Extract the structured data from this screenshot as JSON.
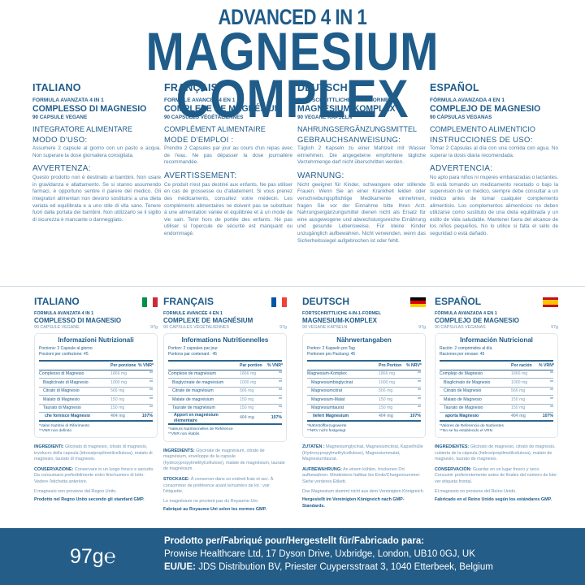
{
  "header": {
    "subtitle": "ADVANCED 4 IN 1",
    "title": "MAGNESIUM COMPLEX"
  },
  "colors": {
    "brand_blue": "#1f5c8a",
    "footer_bg": "#245d87",
    "body_text": "#4d7fa6"
  },
  "columns": [
    {
      "lang": "ITALIANO",
      "formula": "FORMULA AVANZATA 4 IN 1",
      "product": "COMPLESSO DI MAGNESIO",
      "capsules": "90 CAPSULE VEGANE",
      "category": "INTEGRATORE ALIMENTARE",
      "usage_title": "MODO D'USO:",
      "usage_text": "Assumere 2 capsule al giorno con un pasto e acqua. Non superare la dose giornaliera consigliata.",
      "warning_title": "AVVERTENZA:",
      "warning_text": "Questo prodotto non è destinato ai bambini. Non usare in gravidanza e allattamento. Se si stanno assumendo farmaci, è opportuno sentire il parere del medico. Gli integratori alimentari non devono sostituirsi a una dieta variata ed equilibrata e a uno stile di vita sano. Tenere fuori dalla portata dei bambini. Non utilizzarlo se il sigillo di sicurezza è mancante o danneggiato."
    },
    {
      "lang": "FRANÇAIS",
      "formula": "FORMULE AVANCÉE 4 EN 1",
      "product": "COMPLEXE DE MAGNÉSIUM",
      "capsules": "90 CAPSULES VÉGÉTALIENNES",
      "category": "COMPLÉMENT ALIMENTAIRE",
      "usage_title": "MODE D'EMPLOI :",
      "usage_text": "Prendre 2 Capsules par jour au cours d'un repas avec de l'eau. Ne pas dépasser la dose journalière recommandée.",
      "warning_title": "AVERTISSEMENT:",
      "warning_text": "Ce produit n'est pas destiné aux enfants. Ne pas utiliser en cas de grossesse ou d'allaitement. Si vous prenez des médicaments, consultez votre médecin. Les compléments alimentaires ne doivent pas se substituer à une alimentation variée et équilibrée et à un mode de vie sain. Tenir hors de portée des enfants. Ne pas utiliser si l'opercule de sécurité est manquant ou endommagé."
    },
    {
      "lang": "DEUTSCH",
      "formula": "FORTSCHRITTLICHE 4-IN-1-FORMEL",
      "product": "MAGNESIUM-KOMPLEX",
      "capsules": "90 VEGANE KAPSELN",
      "category": "NAHRUNGSERGÄNZUNGSMITTEL",
      "usage_title": "GEBRAUCHSANWEISUNG:",
      "usage_text": "Täglich 2 Kapseln zu einer Mahlzeit mit Wasser einnehmen. Die angegebene empfohlene tägliche Verzehrmenge darf nicht überschritten werden.",
      "warning_title": "WARNUNG:",
      "warning_text": "Nicht geeignet für Kinder, schwangere oder stillende Frauen. Wenn Sie an einer Krankheit leiden oder verschreibungspflichtige Medikamente einnehmen, fragen Sie vor der Einnahme bitte Ihren Arzt. Nahrungsergänzungsmittel dienen nicht als Ersatz für eine ausgewogene und abwechslungsreiche Ernährung und gesunde Lebensweise. Für kleine Kinder unzugänglich aufbewahren. Nicht verwenden, wenn das Sicherheitssiegel aufgebrochen ist oder fehlt."
    },
    {
      "lang": "ESPAÑOL",
      "formula": "FÓRMULA AVANZADA 4 EN 1",
      "product": "COMPLEJO DE MAGNESIO",
      "capsules": "90 CÁPSULAS VEGANAS",
      "category": "COMPLEMENTO ALIMENTICIO",
      "usage_title": "INSTRUCCIONES DE USO:",
      "usage_text": "Tomar 2 Cápsulas al día con una comida con agua. No superar la dosis diaria recomendada.",
      "warning_title": "ADVERTENCIA:",
      "warning_text": "No apto para niños ni mujeres embarazadas o lactantes. Si está tomando un medicamento recetado o bajo la supervisión de un médico, siempre debe consultar a un médico antes de tomar cualquier complemento alimenticio. Los complementos alimenticios no deben utilizarse como sustituto de una dieta equilibrada y un estilo de vida saludable. Mantener fuera del alcance de los niños pequeños. No lo utilice si falta el sello de seguridad o está dañado."
    }
  ],
  "panels": [
    {
      "lang": "ITALIANO",
      "flag": "italy-flag",
      "formula": "FORMULA AVANZATA 4 IN 1",
      "product": "COMPLESSO DI MAGNESIO",
      "capsules": "90 CAPSULE VEGANE",
      "weight": "97g",
      "table_title": "Informazioni Nutrizionali",
      "portion": [
        "Porzione: 2 Capsule al giorno",
        "Porzioni per confezione: 45"
      ],
      "headers": [
        "Per porzione",
        "% VNR*"
      ],
      "rows": [
        [
          "Complesso di Magnesio",
          "1866 mg",
          "**"
        ],
        [
          "Bisglicinato di Magnesio",
          "1000 mg",
          "**"
        ],
        [
          "Citrato di Magnesio",
          "566 mg",
          "**"
        ],
        [
          "Malato di Magnesio",
          "150 mg",
          "**"
        ],
        [
          "Taurato di Magnesio",
          "150 mg",
          "**"
        ],
        [
          "che fornisce Magnesio",
          "404 mg",
          "107%"
        ]
      ],
      "footnotes": [
        "*Valori Nutritivi di Riferimento",
        "**VNR non definito"
      ],
      "ingredients_label": "INGREDIENTI:",
      "ingredients": "Glicinato di magnesio, citrato di magnesio, involucro della capsula (idrossipropilmetilcellulosa), malato di magnesio, taurato di magnesio.",
      "storage_label": "CONSERVAZIONE:",
      "storage": "Conservare in un luogo fresco e asciutto. Da consumarsi preferibilmente entro fine/numero di lotto: Vedere l'etichetta anteriore.",
      "origin": "Il magnesio non proviene dal Regno Unito.",
      "made": "Prodotto nel Regno Unito secondo gli standard GMP."
    },
    {
      "lang": "FRANÇAIS",
      "flag": "france-flag",
      "formula": "FORMULE AVANCÉE 4 EN 1",
      "product": "COMPLEXE DE MAGNÉSIUM",
      "capsules": "90 CAPSULES VÉGÉTALIENNES",
      "weight": "97g",
      "table_title": "Informations Nutritionnelles",
      "portion": [
        "Portion: 2 capsules par jour",
        "Portions par contenant : 45"
      ],
      "headers": [
        "Par portion",
        "% VNR*"
      ],
      "rows": [
        [
          "Complexe de magnésium",
          "1866 mg",
          "**"
        ],
        [
          "Bisglycinate de magnésium",
          "1000 mg",
          "**"
        ],
        [
          "Citrate de magnésium",
          "566 mg",
          "**"
        ],
        [
          "Malate de magnésium",
          "150 mg",
          "**"
        ],
        [
          "Taurate de magnésium",
          "150 mg",
          "**"
        ],
        [
          "Apport en magnésium élémentaire",
          "404 mg",
          "107%"
        ]
      ],
      "footnotes": [
        "*Valeurs Nutritionnelles de Référence",
        "**VNR non établis"
      ],
      "ingredients_label": "INGRÉDIENTS:",
      "ingredients": "Glycinate de magnésium, citrate de magnésium, enveloppe de la capsule (hydroxypropylméthylcellulose), malate de magnésium, taurate de magnésium.",
      "storage_label": "STOCKAGE:",
      "storage": "À conserver dans un endroit frais et sec. À consommer de préférence avant le/numéro de lot : voir l'étiquette.",
      "origin": "Le magnésium ne provient pas du Royaume-Uni.",
      "made": "Fabriqué au Royaume-Uni selon les normes GMP."
    },
    {
      "lang": "DEUTSCH",
      "flag": "germany-flag",
      "formula": "FORTSCHRITTLICHE 4-IN-1-FORMEL",
      "product": "MAGNESIUM-KOMPLEX",
      "capsules": "90 VEGANE KAPSELN",
      "weight": "97g",
      "table_title": "Nährwertangaben",
      "portion": [
        "Portion: 2 Kapseln pro Tag",
        "Portionen pro Packung: 45"
      ],
      "headers": [
        "Pro Portion",
        "% NRV*"
      ],
      "rows": [
        [
          "Magnesium-Komplex",
          "1866 mg",
          "**"
        ],
        [
          "Magnesiumbisglycinat",
          "1000 mg",
          "**"
        ],
        [
          "Magnesiumcitrat",
          "566 mg",
          "**"
        ],
        [
          "Magnesium-Malat",
          "150 mg",
          "**"
        ],
        [
          "Magnesiumtaurat",
          "150 mg",
          "**"
        ],
        [
          "liefert Magnesium",
          "404 mg",
          "107%"
        ]
      ],
      "footnotes": [
        "*Nährstoffbezugswerte",
        "**NRV nicht festgelegt"
      ],
      "ingredients_label": "ZUTATEN :",
      "ingredients": "Magnesiumglycinat, Magnesiumcitrat, Kapselhülle (Hydroxypropylmethylcellulose), Magnesiummalat, Magnesiumtaurat.",
      "storage_label": "AUFBEWAHRUNG:",
      "storage": "An einem kühlen, trockenen Ort aufbewahren. Mindestens haltbar bis Ende/Chargennummer: Siehe vorderes Etikett.",
      "origin": "Das Magnesium stammt nicht aus dem Vereinigten Königreich.",
      "made": "Hergestellt im Vereinigten Königreich nach GMP-Standards."
    },
    {
      "lang": "ESPAÑOL",
      "flag": "spain-flag",
      "formula": "FÓRMULA AVANZADA 4 EN 1",
      "product": "COMPLEJO DE MAGNESIO",
      "capsules": "90 CÁPSULAS VEGANAS",
      "weight": "97g",
      "table_title": "Información Nutricional",
      "portion": [
        "Ración: 2 comprimidos al día",
        "Raciones por envase: 45"
      ],
      "headers": [
        "Por ración",
        "% VRN*"
      ],
      "rows": [
        [
          "Complejo de Magnesio",
          "1866 mg",
          "**"
        ],
        [
          "Bisglicinato de Magnesio",
          "1000 mg",
          "**"
        ],
        [
          "Citrato de Magnesio",
          "566 mg",
          "**"
        ],
        [
          "Malato de Magnesio",
          "150 mg",
          "**"
        ],
        [
          "Taurato de Magnesio",
          "150 mg",
          "**"
        ],
        [
          "aporta Magnesio",
          "404 mg",
          "107%"
        ]
      ],
      "footnotes": [
        "*Valores de Referencia de Nutrientes",
        "**No se ha establecido el VRN"
      ],
      "ingredients_label": "INGREDIENTES:",
      "ingredients": "Glicinato de magnesio, citrato de magnesio, cubierta de la cápsula (hidroxipropilmetilcelulosa), malato de magnesio, taurato de magnesio.",
      "storage_label": "CONSERVACIÓN:",
      "storage": "Guardar en un lugar fresco y seco. Consumir preferentemente antes de finales del número de lote: ver etiqueta frontal.",
      "origin": "El magnesio no proviene del Reino Unido.",
      "made": "Fabricado en el Reino Unido según los estándares GMP."
    }
  ],
  "footer": {
    "weight": "97g",
    "estimated_sign": "℮",
    "made_for": "Prodotto per/Fabriqué pour/Hergestellt für/Fabricado para:",
    "address": "Prowise Healthcare Ltd, 17 Dyson Drive, Uxbridge, London, UB10 0GJ, UK",
    "eu_label": "EU/UE:",
    "eu_address": "JDS Distribution BV, Priester Cuypersstraat 3, 1040 Etterbeek, Belgium"
  }
}
